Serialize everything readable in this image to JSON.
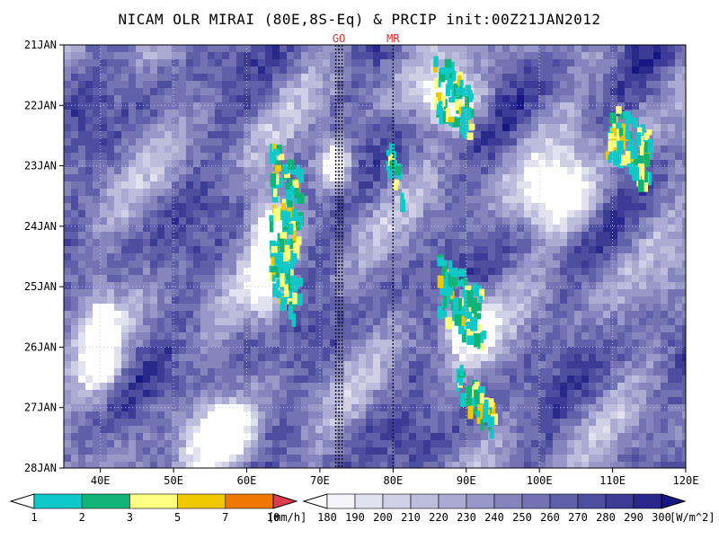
{
  "title": "NICAM OLR MIRAI (80E,8S-Eq) & PRCIP init:00Z21JAN2012",
  "markers": [
    {
      "label": "GO",
      "lon": 72.6
    },
    {
      "label": "MR",
      "lon": 80.0
    }
  ],
  "chart_data": {
    "type": "heatmap",
    "title": "NICAM OLR MIRAI (80E,8S-Eq) & PRCIP init:00Z21JAN2012",
    "x_ticks": [
      {
        "value": 40,
        "label": "40E"
      },
      {
        "value": 50,
        "label": "50E"
      },
      {
        "value": 60,
        "label": "60E"
      },
      {
        "value": 70,
        "label": "70E"
      },
      {
        "value": 80,
        "label": "80E"
      },
      {
        "value": 90,
        "label": "90E"
      },
      {
        "value": 100,
        "label": "100E"
      },
      {
        "value": 110,
        "label": "110E"
      },
      {
        "value": 120,
        "label": "120E"
      }
    ],
    "y_ticks": [
      {
        "value": 0,
        "label": "21JAN"
      },
      {
        "value": 1,
        "label": "22JAN"
      },
      {
        "value": 2,
        "label": "23JAN"
      },
      {
        "value": 3,
        "label": "24JAN"
      },
      {
        "value": 4,
        "label": "25JAN"
      },
      {
        "value": 5,
        "label": "26JAN"
      },
      {
        "value": 6,
        "label": "27JAN"
      },
      {
        "value": 7,
        "label": "28JAN"
      }
    ],
    "xlim": [
      35,
      120
    ],
    "ylim": [
      0,
      7
    ],
    "grid": true,
    "olr_colorbar": {
      "levels": [
        "180",
        "190",
        "200",
        "210",
        "220",
        "230",
        "240",
        "250",
        "260",
        "270",
        "280",
        "290",
        "300"
      ],
      "unit": "[W/m^2]",
      "colors": [
        "#f4f4fa",
        "#e1e1f0",
        "#cfcfe6",
        "#bcbcdc",
        "#aaaad2",
        "#9797c8",
        "#8585be",
        "#7373b4",
        "#6060aa",
        "#4e4ea0",
        "#3c3c96",
        "#29298c",
        "#171782"
      ]
    },
    "precip_colorbar": {
      "levels": [
        "1",
        "2",
        "3",
        "5",
        "7",
        "10"
      ],
      "unit": "[mm/h]",
      "colors": [
        "#10c8c8",
        "#10b478",
        "#ffff80",
        "#f0c800",
        "#f07800",
        "#e03c50"
      ]
    },
    "precip_areas": [
      {
        "lon": 65.0,
        "day": 3.0,
        "w": 4.0,
        "h": 2.6
      },
      {
        "lon": 88.0,
        "day": 0.8,
        "w": 5.0,
        "h": 1.0
      },
      {
        "lon": 89.0,
        "day": 4.2,
        "w": 6.0,
        "h": 1.0
      },
      {
        "lon": 91.0,
        "day": 5.8,
        "w": 5.0,
        "h": 0.6
      },
      {
        "lon": 112.0,
        "day": 1.6,
        "w": 6.0,
        "h": 1.0
      },
      {
        "lon": 80.0,
        "day": 2.0,
        "w": 2.0,
        "h": 0.6
      }
    ],
    "cloud_features": [
      {
        "lon": 63.0,
        "day": 3.5,
        "w": 6.0,
        "h": 2.6
      },
      {
        "lon": 88.0,
        "day": 0.9,
        "w": 10.0,
        "h": 1.0
      },
      {
        "lon": 90.0,
        "day": 4.6,
        "w": 8.0,
        "h": 1.2
      },
      {
        "lon": 40.0,
        "day": 5.0,
        "w": 6.0,
        "h": 1.8
      },
      {
        "lon": 57.0,
        "day": 6.5,
        "w": 10.0,
        "h": 1.2
      },
      {
        "lon": 103.0,
        "day": 2.5,
        "w": 12.0,
        "h": 1.4
      },
      {
        "lon": 72.0,
        "day": 2.0,
        "w": 6.0,
        "h": 1.0
      }
    ]
  }
}
